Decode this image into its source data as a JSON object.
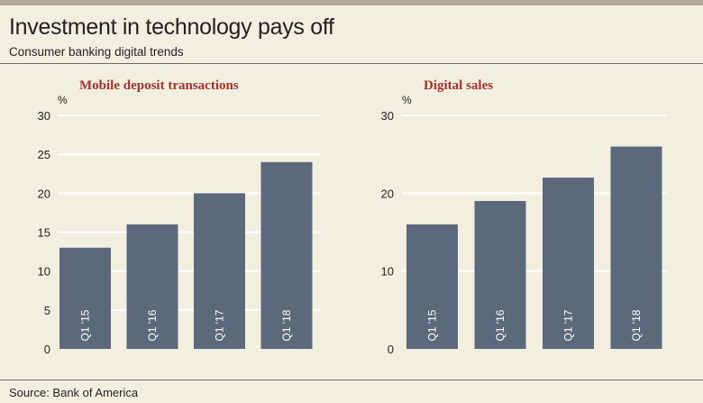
{
  "title": "Investment in technology pays off",
  "subtitle": "Consumer banking digital trends",
  "source": "Source: Bank of America",
  "colors": {
    "bar": "#5c687b",
    "chart_title": "#a8302b",
    "background": "#f2efe1",
    "grid": "#ffffff"
  },
  "chart_data": [
    {
      "type": "bar",
      "title": "Mobile deposit transactions",
      "ylabel": "%",
      "xlabel": "",
      "categories": [
        "Q1 '15",
        "Q1 '16",
        "Q1 '17",
        "Q1 '18"
      ],
      "values": [
        13,
        16,
        20,
        24
      ],
      "ylim": [
        0,
        30
      ],
      "yticks": [
        0,
        5,
        10,
        15,
        20,
        25,
        30
      ],
      "grid": true
    },
    {
      "type": "bar",
      "title": "Digital sales",
      "ylabel": "%",
      "xlabel": "",
      "categories": [
        "Q1 '15",
        "Q1 '16",
        "Q1 '17",
        "Q1 '18"
      ],
      "values": [
        16,
        19,
        22,
        26
      ],
      "ylim": [
        0,
        30
      ],
      "yticks": [
        0,
        10,
        20,
        30
      ],
      "grid": true
    }
  ]
}
